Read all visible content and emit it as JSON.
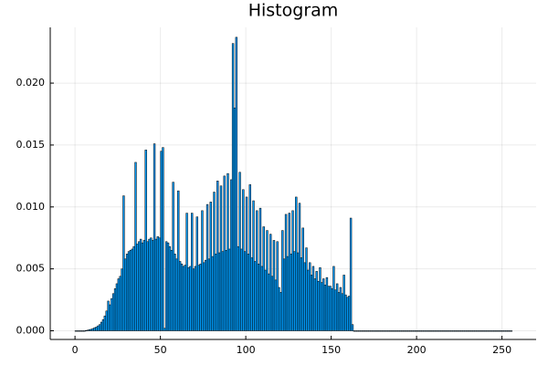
{
  "chart_data": {
    "type": "histogram",
    "title": "Histogram",
    "color": "#009af9",
    "edgecolor": "#000000",
    "xlim": [
      -14.5,
      270
    ],
    "ylim": [
      -0.0007,
      0.0245
    ],
    "xticks": [
      0,
      50,
      100,
      150,
      200,
      250
    ],
    "yticks": [
      {
        "value": 0,
        "label": "0.000"
      },
      0.005,
      {
        "value": 0.01,
        "label": "0.010"
      },
      0.015,
      {
        "value": 0.02,
        "label": "0.020"
      }
    ],
    "grid": true,
    "bins": [
      0,
      1,
      2,
      3,
      4,
      5,
      6,
      7,
      8,
      9,
      10,
      11,
      12,
      13,
      14,
      15,
      16,
      17,
      18,
      19,
      20,
      21,
      22,
      23,
      24,
      25,
      26,
      27,
      28,
      29,
      30,
      31,
      32,
      33,
      34,
      35,
      36,
      37,
      38,
      39,
      40,
      41,
      42,
      43,
      44,
      45,
      46,
      47,
      48,
      49,
      50,
      51,
      52,
      53,
      54,
      55,
      56,
      57,
      58,
      59,
      60,
      61,
      62,
      63,
      64,
      65,
      66,
      67,
      68,
      69,
      70,
      71,
      72,
      73,
      74,
      75,
      76,
      77,
      78,
      79,
      80,
      81,
      82,
      83,
      84,
      85,
      86,
      87,
      88,
      89,
      90,
      91,
      92,
      93,
      94,
      95,
      96,
      97,
      98,
      99,
      100,
      101,
      102,
      103,
      104,
      105,
      106,
      107,
      108,
      109,
      110,
      111,
      112,
      113,
      114,
      115,
      116,
      117,
      118,
      119,
      120,
      121,
      122,
      123,
      124,
      125,
      126,
      127,
      128,
      129,
      130,
      131,
      132,
      133,
      134,
      135,
      136,
      137,
      138,
      139,
      140,
      141,
      142,
      143,
      144,
      145,
      146,
      147,
      148,
      149,
      150,
      151,
      152,
      153,
      154,
      155,
      156,
      157,
      158,
      159,
      160,
      161,
      162,
      163,
      164,
      165,
      166,
      167,
      168,
      169,
      170,
      171,
      172,
      173,
      174,
      175,
      176,
      177,
      178,
      179,
      180,
      181,
      182,
      183,
      184,
      185,
      186,
      187,
      188,
      189,
      190,
      191,
      192,
      193,
      194,
      195,
      196,
      197,
      198,
      199,
      200,
      201,
      202,
      203,
      204,
      205,
      206,
      207,
      208,
      209,
      210,
      211,
      212,
      213,
      214,
      215,
      216,
      217,
      218,
      219,
      220,
      221,
      222,
      223,
      224,
      225,
      226,
      227,
      228,
      229,
      230,
      231,
      232,
      233,
      234,
      235,
      236,
      237,
      238,
      239,
      240,
      241,
      242,
      243,
      244,
      245,
      246,
      247,
      248,
      249,
      250,
      251,
      252,
      253,
      254,
      255,
      256
    ],
    "values": [
      0,
      0,
      0,
      0,
      0,
      0,
      3e-05,
      5e-05,
      0.0001,
      0.00012,
      0.00018,
      0.00025,
      0.0003,
      0.0004,
      0.0005,
      0.0007,
      0.0009,
      0.0012,
      0.0016,
      0.0024,
      0.0021,
      0.0026,
      0.003,
      0.0034,
      0.0038,
      0.0042,
      0.0044,
      0.005,
      0.0109,
      0.0058,
      0.0062,
      0.0064,
      0.0065,
      0.0066,
      0.0068,
      0.0136,
      0.007,
      0.0072,
      0.0074,
      0.0071,
      0.0073,
      0.0146,
      0.0072,
      0.0074,
      0.0075,
      0.0073,
      0.0151,
      0.0074,
      0.0076,
      0.0075,
      0.0145,
      0.0148,
      0.0002,
      0.0072,
      0.0071,
      0.0068,
      0.0065,
      0.012,
      0.0062,
      0.0058,
      0.0113,
      0.0056,
      0.0054,
      0.0052,
      0.0053,
      0.0095,
      0.0051,
      0.0052,
      0.0095,
      0.005,
      0.0052,
      0.0092,
      0.0053,
      0.0054,
      0.0097,
      0.0055,
      0.0057,
      0.0102,
      0.0058,
      0.0104,
      0.006,
      0.0112,
      0.0062,
      0.0121,
      0.0063,
      0.0117,
      0.0064,
      0.0125,
      0.0065,
      0.0127,
      0.0066,
      0.0122,
      0.0232,
      0.018,
      0.0237,
      0.0068,
      0.0128,
      0.0066,
      0.0114,
      0.0064,
      0.0108,
      0.0062,
      0.0118,
      0.0059,
      0.0105,
      0.0056,
      0.0097,
      0.0054,
      0.0099,
      0.0052,
      0.0084,
      0.0049,
      0.0081,
      0.0046,
      0.0078,
      0.0044,
      0.0073,
      0.0041,
      0.0072,
      0.0035,
      0.0031,
      0.0081,
      0.0058,
      0.0094,
      0.006,
      0.0095,
      0.0062,
      0.0097,
      0.0064,
      0.0108,
      0.0063,
      0.0103,
      0.0059,
      0.0083,
      0.0055,
      0.0067,
      0.0049,
      0.0055,
      0.0045,
      0.0052,
      0.0042,
      0.0048,
      0.004,
      0.0051,
      0.0039,
      0.0042,
      0.0037,
      0.0043,
      0.0036,
      0.0036,
      0.0034,
      0.0052,
      0.0033,
      0.0038,
      0.0031,
      0.0035,
      0.003,
      0.0045,
      0.0029,
      0.0027,
      0.0028,
      0.0091,
      0.0005,
      0,
      0,
      0,
      0,
      0,
      0,
      0,
      0,
      0,
      0,
      0,
      0,
      0,
      0,
      0,
      0,
      0,
      0,
      0,
      0,
      0,
      0,
      0,
      0,
      0,
      0,
      0,
      0,
      0,
      0,
      0,
      0,
      0,
      0,
      0,
      0,
      0,
      0,
      0,
      0,
      0,
      0,
      0,
      0,
      0,
      0,
      0,
      0,
      0,
      0,
      0,
      0,
      0,
      0,
      0,
      0,
      0,
      0,
      0,
      0,
      0,
      0,
      0,
      0,
      0,
      0,
      0,
      0,
      0,
      0,
      0,
      0,
      0,
      0,
      0,
      0,
      0,
      0,
      0,
      0,
      0,
      0,
      0,
      0,
      0,
      0,
      0,
      0,
      0,
      0,
      0,
      0,
      0
    ]
  }
}
